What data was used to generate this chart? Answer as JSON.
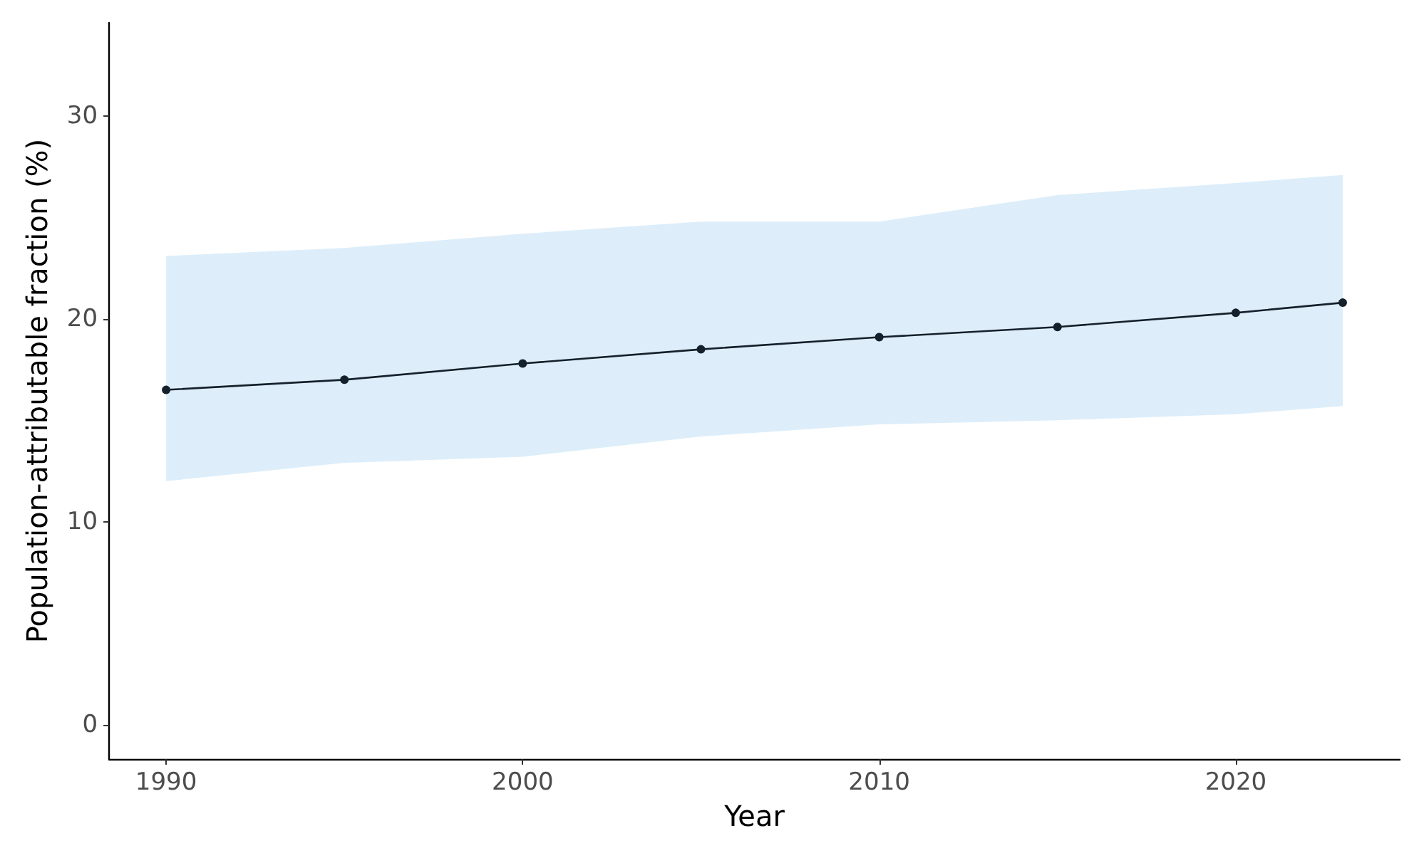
{
  "chart_data": {
    "type": "line",
    "xlabel": "Year",
    "ylabel": "Population-attributable fraction (%)",
    "x": [
      1990,
      1995,
      2000,
      2005,
      2010,
      2015,
      2020,
      2023
    ],
    "series": [
      {
        "color": "#14202b",
        "values": [
          16.5,
          17.0,
          17.8,
          18.5,
          19.1,
          19.6,
          20.3,
          20.8
        ],
        "lower": [
          12.0,
          12.9,
          13.2,
          14.2,
          14.8,
          15.0,
          15.3,
          15.7
        ],
        "upper": [
          23.1,
          23.5,
          24.2,
          24.8,
          24.8,
          26.1,
          26.7,
          27.1
        ]
      }
    ],
    "xlim": [
      1988.4,
      2024.6
    ],
    "xticks": [
      1990,
      2000,
      2010,
      2020
    ],
    "ylim": [
      -1.7,
      34.6
    ],
    "yticks": [
      0,
      10,
      20,
      30
    ],
    "grid": false,
    "marker": "circle",
    "line_style": "solid"
  }
}
